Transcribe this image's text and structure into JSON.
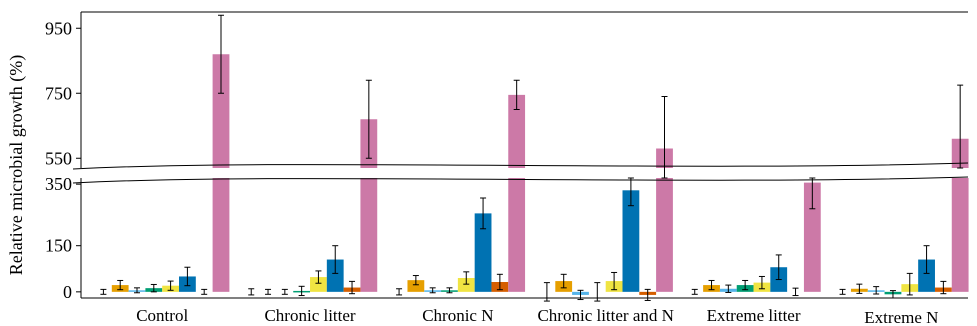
{
  "chart_data": {
    "type": "bar",
    "ylabel": "Relative microbial growth (%)",
    "xlabel": "",
    "title": "",
    "categories": [
      "Control",
      "Chronic litter",
      "Chronic N",
      "Chronic litter and N",
      "Extreme litter",
      "Extreme N"
    ],
    "y_break": {
      "lower_range": [
        -20,
        370
      ],
      "upper_range": [
        520,
        1000
      ]
    },
    "yticks_lower": [
      0,
      150,
      350
    ],
    "yticks_upper": [
      550,
      750,
      950
    ],
    "series": [
      {
        "color": "#000000",
        "values": [
          0,
          0,
          0,
          0,
          0,
          0
        ],
        "errors": [
          8,
          10,
          10,
          30,
          8,
          8
        ]
      },
      {
        "color": "#e69f00",
        "values": [
          22,
          0,
          38,
          35,
          22,
          10
        ],
        "errors": [
          15,
          8,
          15,
          22,
          15,
          15
        ]
      },
      {
        "color": "#56b4e9",
        "values": [
          5,
          0,
          5,
          -10,
          10,
          5
        ],
        "errors": [
          8,
          8,
          8,
          15,
          12,
          12
        ]
      },
      {
        "color": "#009e73",
        "values": [
          12,
          3,
          5,
          0,
          22,
          -8
        ],
        "errors": [
          12,
          15,
          8,
          30,
          15,
          12
        ]
      },
      {
        "color": "#f0e442",
        "values": [
          20,
          48,
          45,
          35,
          30,
          25
        ],
        "errors": [
          15,
          20,
          20,
          28,
          20,
          35
        ]
      },
      {
        "color": "#0072b2",
        "values": [
          50,
          105,
          255,
          330,
          80,
          105
        ],
        "errors": [
          30,
          45,
          50,
          50,
          40,
          45
        ]
      },
      {
        "color": "#d55e00",
        "values": [
          0,
          14,
          32,
          -10,
          0,
          14
        ],
        "errors": [
          8,
          20,
          25,
          18,
          12,
          20
        ]
      },
      {
        "color": "#cc79a7",
        "values": [
          870,
          670,
          745,
          580,
          355,
          610
        ],
        "errors": [
          120,
          120,
          45,
          160,
          85,
          165
        ]
      }
    ]
  }
}
